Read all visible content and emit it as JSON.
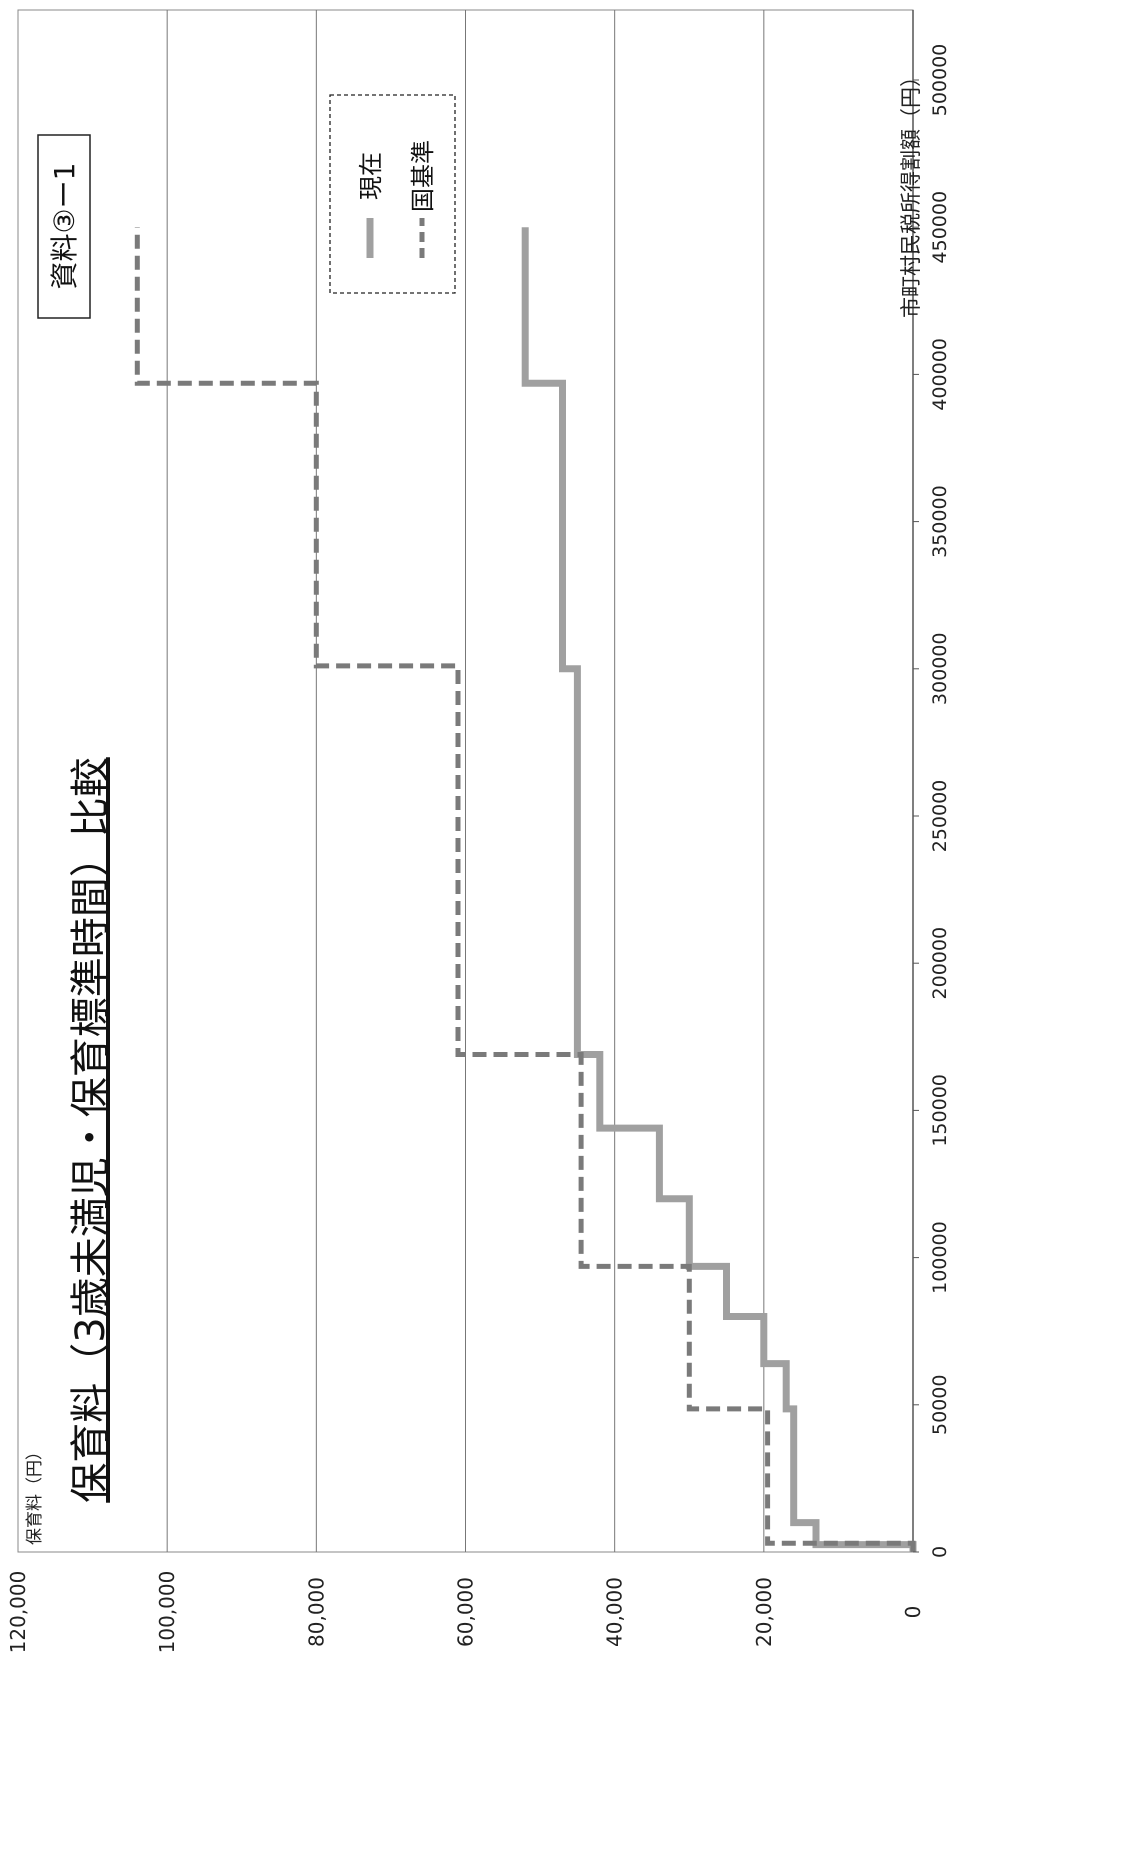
{
  "doc_label": "資料③ー1",
  "chart_data": {
    "type": "line",
    "title": "保育料（3歳未満児・保育標準時間）比較",
    "ylabel": "保育料（円）",
    "xlabel": "市町村民税所得割額（円）",
    "xlim": [
      0,
      500000
    ],
    "ylim": [
      0,
      120000
    ],
    "x_ticks": [
      {
        "value": 0,
        "label": "0"
      },
      {
        "value": 50000,
        "label": "50000"
      },
      {
        "value": 100000,
        "label": "100000"
      },
      {
        "value": 150000,
        "label": "150000"
      },
      {
        "value": 200000,
        "label": "200000"
      },
      {
        "value": 250000,
        "label": "250000"
      },
      {
        "value": 300000,
        "label": "300000"
      },
      {
        "value": 350000,
        "label": "350000"
      },
      {
        "value": 400000,
        "label": "400000"
      },
      {
        "value": 450000,
        "label": "450000"
      },
      {
        "value": 500000,
        "label": "500000"
      }
    ],
    "y_ticks": [
      {
        "value": 0,
        "label": "0"
      },
      {
        "value": 20000,
        "label": "20,000"
      },
      {
        "value": 40000,
        "label": "40,000"
      },
      {
        "value": 60000,
        "label": "60,000"
      },
      {
        "value": 80000,
        "label": "80,000"
      },
      {
        "value": 100000,
        "label": "100,000"
      },
      {
        "value": 120000,
        "label": "120,000"
      }
    ],
    "grid": {
      "horizontal": true,
      "vertical": false
    },
    "legend_position": "top-right",
    "series": [
      {
        "name": "現在",
        "style": "solid",
        "color": "#a0a0a0",
        "x": [
          0,
          0,
          2500,
          2500,
          10000,
          10000,
          48600,
          48600,
          64000,
          64000,
          80000,
          80000,
          97000,
          97000,
          120000,
          120000,
          144000,
          144000,
          169000,
          169000,
          300000,
          300000,
          397000,
          397000,
          450000
        ],
        "y": [
          0,
          0,
          0,
          13000,
          13000,
          16000,
          16000,
          17000,
          17000,
          20000,
          20000,
          25000,
          25000,
          30000,
          30000,
          34000,
          34000,
          42000,
          42000,
          45000,
          45000,
          47000,
          47000,
          52000,
          52000
        ]
      },
      {
        "name": "国基準",
        "style": "dashed",
        "color": "#7a7a7a",
        "x": [
          0,
          0,
          3000,
          3000,
          48600,
          48600,
          97000,
          97000,
          169000,
          169000,
          301000,
          301000,
          397000,
          397000,
          450000
        ],
        "y": [
          0,
          0,
          0,
          19500,
          19500,
          30000,
          30000,
          44500,
          44500,
          61000,
          61000,
          80000,
          80000,
          104000,
          104000
        ]
      }
    ]
  }
}
